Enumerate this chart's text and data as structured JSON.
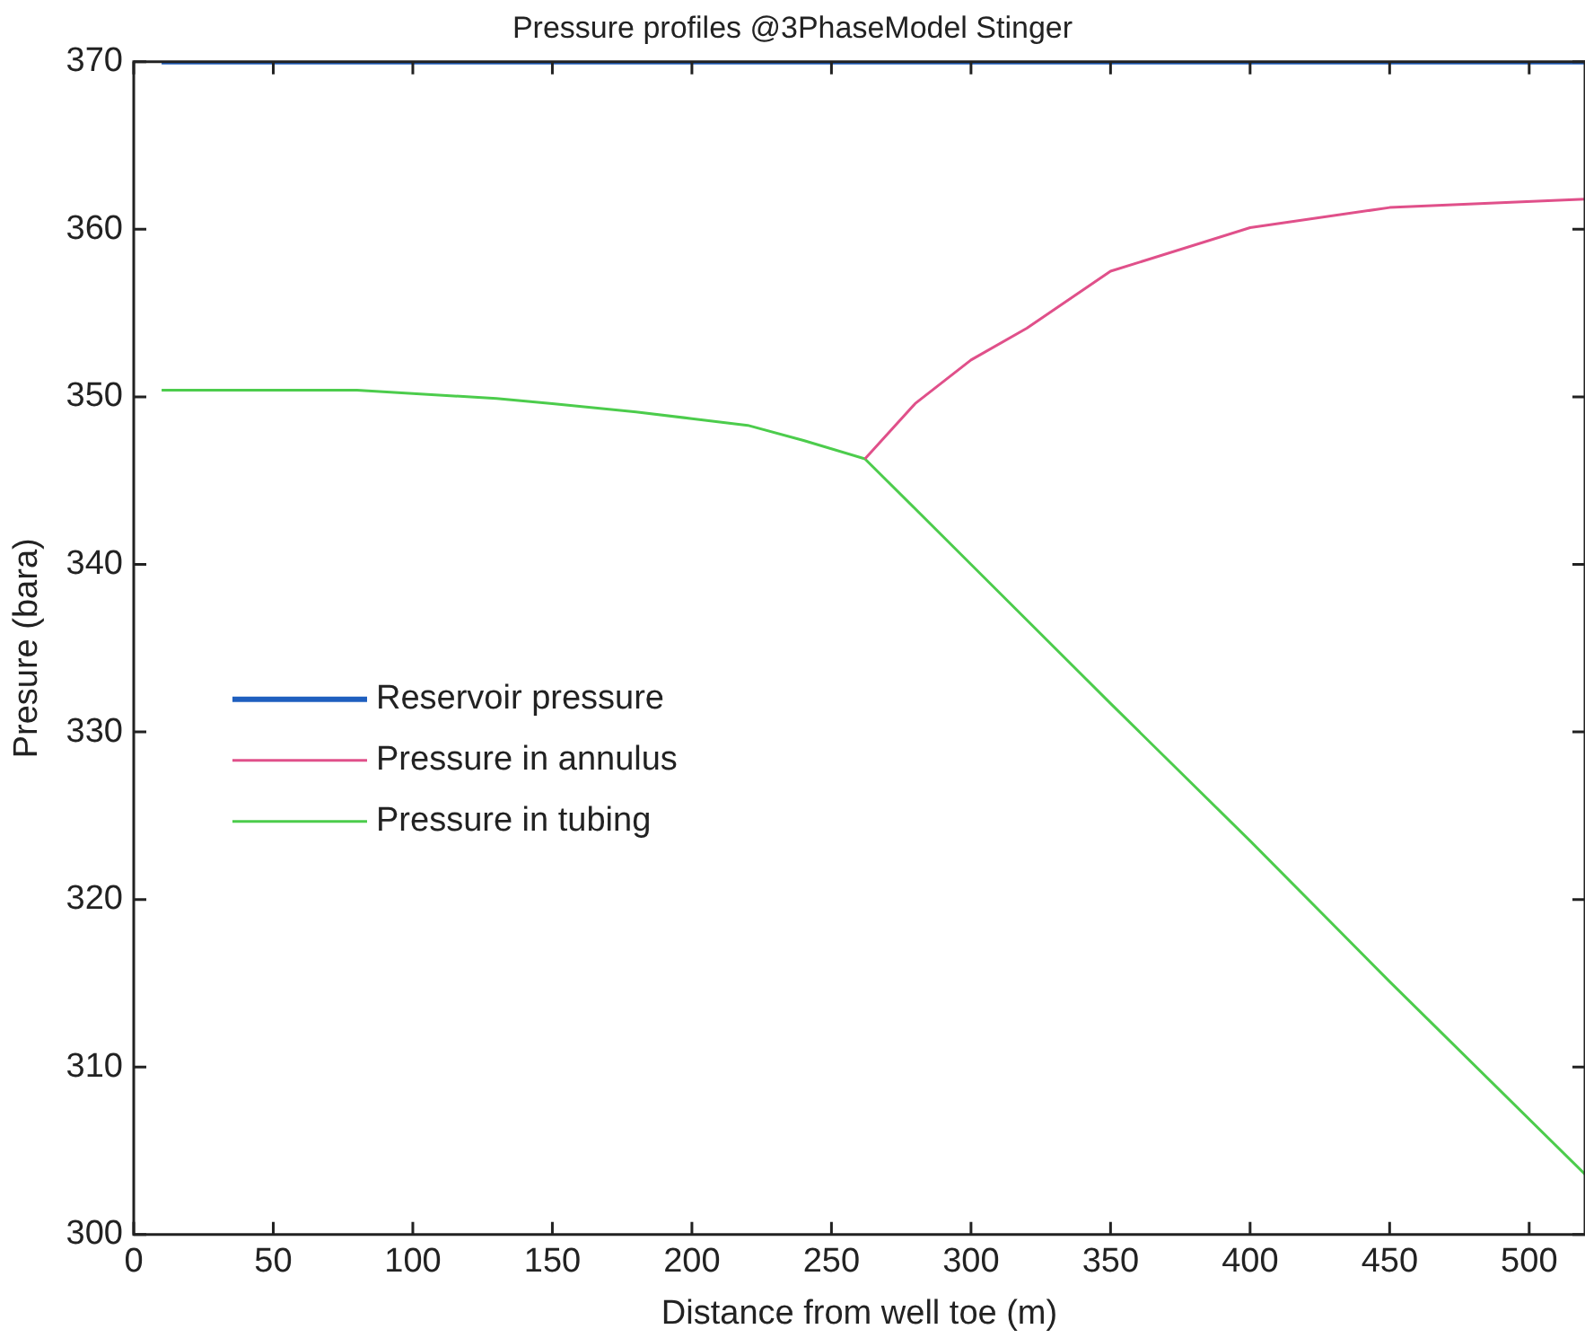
{
  "chart_data": {
    "type": "line",
    "title": "Pressure profiles @3PhaseModel Stinger",
    "xlabel": "Distance from well toe (m)",
    "ylabel": "Presure (bara)",
    "xlim": [
      0,
      520
    ],
    "xticks": [
      0,
      50,
      100,
      150,
      200,
      250,
      300,
      350,
      400,
      450,
      500
    ],
    "ylim": [
      300,
      370
    ],
    "yticks": [
      300,
      310,
      320,
      330,
      340,
      350,
      360,
      370
    ],
    "grid": false,
    "legend": "left",
    "marker": "none",
    "line_style": "solid",
    "series": [
      {
        "name": "Reservoir pressure",
        "color": "#1f5fbf",
        "x": [
          10,
          520
        ],
        "values": [
          370,
          370
        ]
      },
      {
        "name": "Pressure in annulus",
        "color": "#e0508a",
        "x": [
          262,
          280,
          300,
          320,
          350,
          400,
          450,
          520
        ],
        "values": [
          346.3,
          349.6,
          352.2,
          354.1,
          357.5,
          360.1,
          361.3,
          361.8
        ]
      },
      {
        "name": "Pressure in tubing",
        "color": "#4ccc4c",
        "x": [
          10,
          80,
          100,
          130,
          150,
          180,
          200,
          220,
          240,
          262,
          300,
          350,
          400,
          450,
          520
        ],
        "values": [
          350.4,
          350.4,
          350.2,
          349.9,
          349.6,
          349.1,
          348.7,
          348.3,
          347.4,
          346.3,
          340.0,
          331.7,
          323.5,
          315.1,
          303.6
        ]
      }
    ]
  }
}
